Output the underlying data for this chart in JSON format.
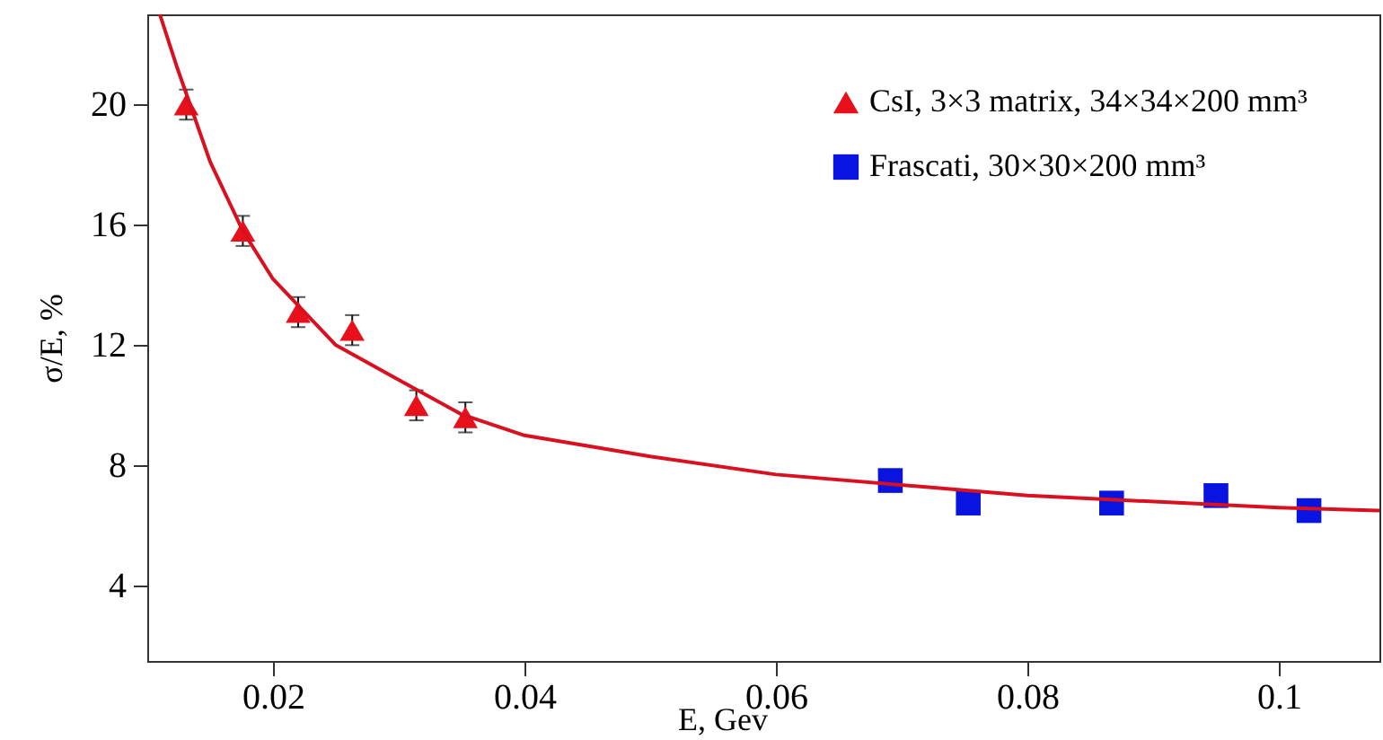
{
  "chart_data": {
    "type": "scatter",
    "xlabel": "E, Gev",
    "ylabel": "σ/E, %",
    "xlim": [
      0.01,
      0.108
    ],
    "ylim": [
      1.5,
      23
    ],
    "xticks": [
      0.02,
      0.04,
      0.06,
      0.08,
      0.1
    ],
    "yticks": [
      4,
      8,
      12,
      16,
      20
    ],
    "grid": false,
    "legend": "top right",
    "series": [
      {
        "name": "CsI, 3×3 matrix, 34×34×200 mm³",
        "marker": "triangle",
        "color": "#e8101a",
        "x": [
          0.0131,
          0.0176,
          0.022,
          0.0263,
          0.0314,
          0.0353
        ],
        "values": [
          20,
          15.8,
          13.1,
          12.5,
          10,
          9.6
        ],
        "errors": [
          0.5,
          0.5,
          0.5,
          0.5,
          0.5,
          0.5
        ]
      },
      {
        "name": "Frascati, 30×30×200 mm³",
        "marker": "square",
        "color": "#0a14e0",
        "x": [
          0.0691,
          0.0753,
          0.0867,
          0.095,
          0.1024
        ],
        "values": [
          7.5,
          6.75,
          6.75,
          7,
          6.5
        ]
      },
      {
        "type": "line",
        "color": "#d81020",
        "line_style": "solid",
        "marker": "none",
        "x": [
          0.011,
          0.0124,
          0.015,
          0.0176,
          0.02,
          0.025,
          0.03,
          0.035,
          0.04,
          0.05,
          0.06,
          0.08,
          0.1,
          0.108
        ],
        "values": [
          23,
          21.2,
          18.1,
          15.8,
          14.2,
          12,
          10.85,
          9.7,
          9,
          8.3,
          7.7,
          7,
          6.6,
          6.5
        ]
      }
    ]
  }
}
